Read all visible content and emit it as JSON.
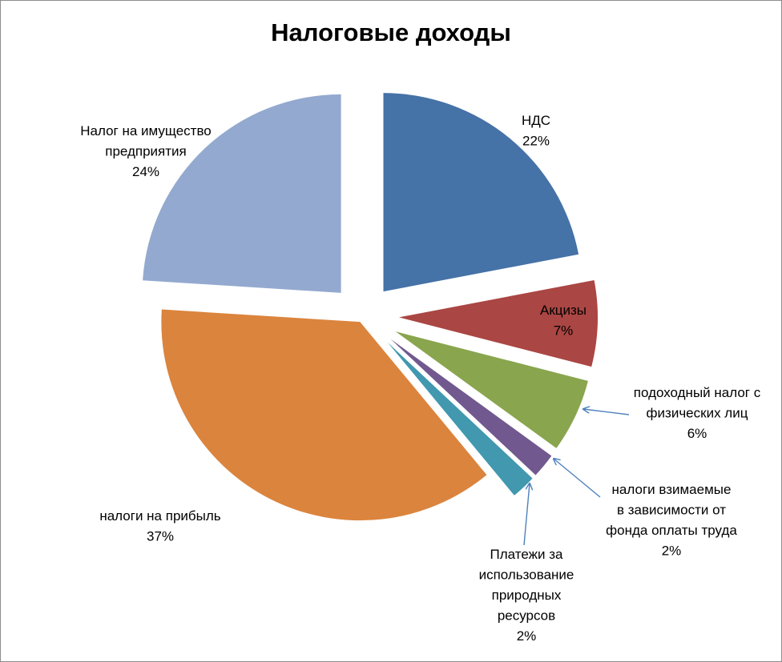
{
  "chart_data": {
    "type": "pie",
    "title": "Налоговые доходы",
    "slices": [
      {
        "name": "НДС",
        "label_lines": [
          "НДС"
        ],
        "value": 22,
        "percent_label": "22%",
        "color": "#4572a7"
      },
      {
        "name": "Акцизы",
        "label_lines": [
          "Акцизы"
        ],
        "value": 7,
        "percent_label": "7%",
        "color": "#aa4643"
      },
      {
        "name": "подоходный налог с физических лиц",
        "label_lines": [
          "подоходный налог с",
          "физических лиц"
        ],
        "value": 6,
        "percent_label": "6%",
        "color": "#89a54e"
      },
      {
        "name": "налоги взимаемые в зависимости от фонда оплаты труда",
        "label_lines": [
          "налоги взимаемые",
          "в зависимости от",
          "фонда оплаты труда"
        ],
        "value": 2,
        "percent_label": "2%",
        "color": "#71588f"
      },
      {
        "name": "Платежи за использование природных ресурсов",
        "label_lines": [
          "Платежи за",
          "использование",
          "природных",
          "ресурсов"
        ],
        "value": 2,
        "percent_label": "2%",
        "color": "#4198af"
      },
      {
        "name": "налоги на прибыль",
        "label_lines": [
          "налоги на прибыль"
        ],
        "value": 37,
        "percent_label": "37%",
        "color": "#db843d"
      },
      {
        "name": "Налог на имущество предприятия",
        "label_lines": [
          "Налог на имущество",
          "предприятия"
        ],
        "value": 24,
        "percent_label": "24%",
        "color": "#93a9cf"
      }
    ],
    "legend": "none",
    "data_labels": "category name and percentage",
    "leader_line_color": "#4f81bd"
  }
}
